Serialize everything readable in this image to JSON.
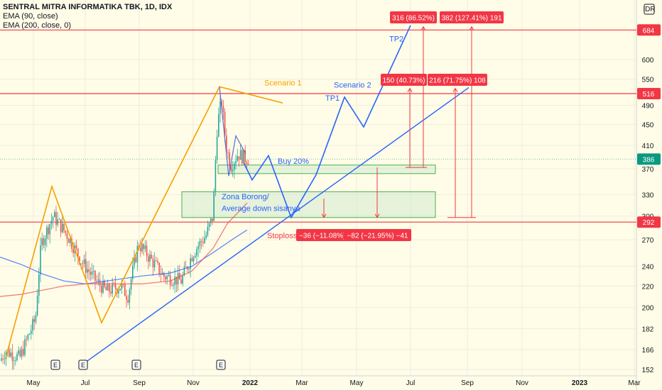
{
  "header": {
    "title": "SENTRAL MITRA INFORMATIKA TBK, 1D, IDX",
    "ema_short": "EMA (90, close)",
    "ema_long": "EMA (200, close, 0)",
    "currency": "IDR"
  },
  "chart_data": {
    "type": "candlestick",
    "x_axis": {
      "ticks": [
        "May",
        "Jul",
        "Sep",
        "Nov",
        "2022",
        "Mar",
        "May",
        "Jul",
        "Sep",
        "Nov",
        "2023",
        "Mar"
      ]
    },
    "y_axis": {
      "scale": "log",
      "ticks": [
        152,
        166,
        182,
        200,
        220,
        240,
        270,
        300,
        330,
        370,
        410,
        450,
        490,
        550,
        600
      ]
    },
    "price_labels": [
      {
        "value": "684",
        "color": "#f23645"
      },
      {
        "value": "516",
        "color": "#f23645"
      },
      {
        "value": "386",
        "color": "#089981"
      },
      {
        "value": "292",
        "color": "#f23645"
      }
    ],
    "horizontal_levels": [
      684,
      516,
      292
    ],
    "last_price": 386,
    "annotations": {
      "scenario1": "Scenario 1",
      "scenario2": "Scenario 2",
      "tp1": "TP1",
      "tp2": "TP2",
      "buy": "Buy 20%",
      "zone_line1": "Zona Borong/",
      "zone_line2": "Average down sisanya",
      "stoploss": "Stoploss"
    },
    "measure_labels": {
      "tp2_a": "316 (86.52%)",
      "tp2_b": "382 (127.41%) 191",
      "tp1_a": "150 (40.73%)",
      "tp1_b": "216 (71.75%) 108",
      "sl_a": "−36 (−11.08%) −",
      "sl_b": "−82 (−21.95%) −41"
    },
    "earnings_markers": [
      "E",
      "E",
      "E",
      "E"
    ],
    "colors": {
      "up": "#26a69a",
      "down": "#ef5350",
      "ema_short": "#2962ff",
      "ema_long": "#ef5350",
      "scenario1": "#f59f00",
      "scenario2": "#2962ff",
      "level": "#f23645",
      "zone_fill": "#c8e6c9",
      "zone_border": "#4caf50"
    }
  }
}
